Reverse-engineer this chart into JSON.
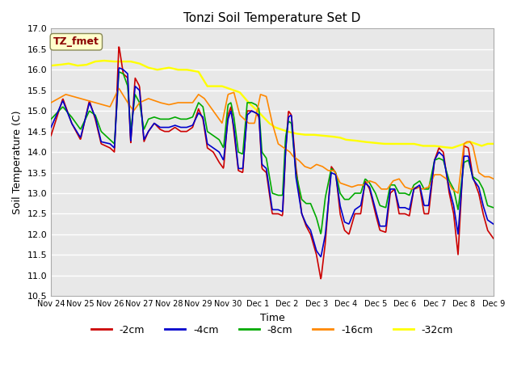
{
  "title": "Tonzi Soil Temperature Set D",
  "xlabel": "Time",
  "ylabel": "Soil Temperature (C)",
  "ylim": [
    10.5,
    17.0
  ],
  "yticks": [
    10.5,
    11.0,
    11.5,
    12.0,
    12.5,
    13.0,
    13.5,
    14.0,
    14.5,
    15.0,
    15.5,
    16.0,
    16.5,
    17.0
  ],
  "xtick_labels": [
    "Nov 24",
    "Nov 25",
    "Nov 26",
    "Nov 27",
    "Nov 28",
    "Nov 29",
    "Nov 30",
    "Dec 1",
    "Dec 2",
    "Dec 3",
    "Dec 4",
    "Dec 5",
    "Dec 6",
    "Dec 7",
    "Dec 8",
    "Dec 9"
  ],
  "legend_label": "TZ_fmet",
  "series_colors": {
    "-2cm": "#cc0000",
    "-4cm": "#0000cc",
    "-8cm": "#00aa00",
    "-16cm": "#ff8800",
    "-32cm": "#ffff00"
  },
  "bg_color": "#e8e8e8",
  "grid_color": "#ffffff"
}
